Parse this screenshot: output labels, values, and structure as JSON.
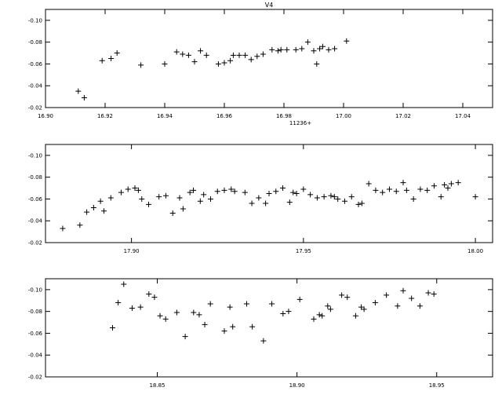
{
  "chart_data": [
    {
      "type": "scatter",
      "title": "V4",
      "xlabel": "11236+",
      "ylabel": "",
      "xlim": [
        16.9,
        17.05
      ],
      "ylim": [
        -0.02,
        -0.11
      ],
      "xticks": [
        "16.90",
        "16.92",
        "16.94",
        "16.96",
        "16.98",
        "17.00",
        "17.02",
        "17.04"
      ],
      "xtick_values": [
        16.9,
        16.92,
        16.94,
        16.96,
        16.98,
        17.0,
        17.02,
        17.04
      ],
      "yticks": [
        "-0.10",
        "-0.08",
        "-0.06",
        "-0.04",
        "-0.02"
      ],
      "ytick_values": [
        -0.1,
        -0.08,
        -0.06,
        -0.04,
        -0.02
      ],
      "marker": "plus",
      "x": [
        16.911,
        16.913,
        16.919,
        16.922,
        16.924,
        16.932,
        16.94,
        16.944,
        16.946,
        16.948,
        16.95,
        16.952,
        16.954,
        16.958,
        16.96,
        16.962,
        16.963,
        16.965,
        16.967,
        16.969,
        16.971,
        16.973,
        16.976,
        16.978,
        16.979,
        16.981,
        16.984,
        16.986,
        16.988,
        16.99,
        16.991,
        16.992,
        16.993,
        16.995,
        16.997,
        17.001
      ],
      "y": [
        -0.035,
        -0.029,
        -0.063,
        -0.065,
        -0.07,
        -0.059,
        -0.06,
        -0.071,
        -0.069,
        -0.068,
        -0.062,
        -0.072,
        -0.068,
        -0.06,
        -0.061,
        -0.063,
        -0.068,
        -0.068,
        -0.068,
        -0.064,
        -0.067,
        -0.069,
        -0.073,
        -0.072,
        -0.073,
        -0.073,
        -0.073,
        -0.074,
        -0.08,
        -0.072,
        -0.06,
        -0.074,
        -0.076,
        -0.073,
        -0.074,
        -0.081
      ]
    },
    {
      "type": "scatter",
      "title": "",
      "xlabel": "",
      "ylabel": "",
      "xlim": [
        17.875,
        18.005
      ],
      "ylim": [
        -0.02,
        -0.11
      ],
      "xticks": [
        "17.90",
        "17.95",
        "18.00"
      ],
      "xtick_values": [
        17.9,
        17.95,
        18.0
      ],
      "yticks": [
        "-0.10",
        "-0.08",
        "-0.06",
        "-0.04",
        "-0.02"
      ],
      "ytick_values": [
        -0.1,
        -0.08,
        -0.06,
        -0.04,
        -0.02
      ],
      "marker": "plus",
      "x": [
        17.88,
        17.885,
        17.887,
        17.889,
        17.891,
        17.892,
        17.894,
        17.897,
        17.899,
        17.901,
        17.902,
        17.903,
        17.905,
        17.908,
        17.91,
        17.912,
        17.914,
        17.915,
        17.917,
        17.918,
        17.92,
        17.921,
        17.923,
        17.925,
        17.927,
        17.929,
        17.93,
        17.933,
        17.935,
        17.937,
        17.939,
        17.94,
        17.942,
        17.944,
        17.946,
        17.947,
        17.948,
        17.95,
        17.952,
        17.954,
        17.956,
        17.958,
        17.959,
        17.96,
        17.962,
        17.964,
        17.966,
        17.967,
        17.969,
        17.971,
        17.973,
        17.975,
        17.977,
        17.979,
        17.98,
        17.982,
        17.984,
        17.986,
        17.988,
        17.99,
        17.991,
        17.992,
        17.993,
        17.995,
        18.0
      ],
      "y": [
        -0.033,
        -0.036,
        -0.048,
        -0.052,
        -0.058,
        -0.049,
        -0.061,
        -0.066,
        -0.069,
        -0.07,
        -0.068,
        -0.06,
        -0.055,
        -0.062,
        -0.063,
        -0.047,
        -0.061,
        -0.051,
        -0.066,
        -0.068,
        -0.058,
        -0.064,
        -0.06,
        -0.067,
        -0.068,
        -0.069,
        -0.067,
        -0.066,
        -0.056,
        -0.061,
        -0.056,
        -0.065,
        -0.067,
        -0.07,
        -0.057,
        -0.066,
        -0.065,
        -0.069,
        -0.064,
        -0.061,
        -0.062,
        -0.063,
        -0.062,
        -0.06,
        -0.058,
        -0.062,
        -0.055,
        -0.056,
        -0.074,
        -0.068,
        -0.066,
        -0.069,
        -0.067,
        -0.075,
        -0.068,
        -0.06,
        -0.069,
        -0.068,
        -0.072,
        -0.062,
        -0.073,
        -0.07,
        -0.074,
        -0.075,
        -0.062
      ]
    },
    {
      "type": "scatter",
      "title": "",
      "xlabel": "",
      "ylabel": "",
      "xlim": [
        18.81,
        18.97
      ],
      "ylim": [
        -0.02,
        -0.11
      ],
      "xticks": [
        "18.85",
        "18.90",
        "18.95"
      ],
      "xtick_values": [
        18.85,
        18.9,
        18.95
      ],
      "yticks": [
        "-0.10",
        "-0.08",
        "-0.06",
        "-0.04",
        "-0.02"
      ],
      "ytick_values": [
        -0.1,
        -0.08,
        -0.06,
        -0.04,
        -0.02
      ],
      "marker": "plus",
      "x": [
        18.834,
        18.836,
        18.838,
        18.841,
        18.844,
        18.847,
        18.849,
        18.851,
        18.853,
        18.857,
        18.86,
        18.863,
        18.865,
        18.867,
        18.869,
        18.874,
        18.876,
        18.877,
        18.882,
        18.884,
        18.888,
        18.891,
        18.895,
        18.897,
        18.901,
        18.906,
        18.908,
        18.909,
        18.911,
        18.912,
        18.916,
        18.918,
        18.921,
        18.923,
        18.924,
        18.928,
        18.932,
        18.936,
        18.938,
        18.941,
        18.944,
        18.947,
        18.949
      ],
      "y": [
        -0.065,
        -0.088,
        -0.105,
        -0.083,
        -0.084,
        -0.096,
        -0.093,
        -0.076,
        -0.073,
        -0.079,
        -0.057,
        -0.079,
        -0.077,
        -0.068,
        -0.087,
        -0.062,
        -0.084,
        -0.066,
        -0.087,
        -0.066,
        -0.053,
        -0.087,
        -0.078,
        -0.08,
        -0.091,
        -0.073,
        -0.077,
        -0.076,
        -0.085,
        -0.082,
        -0.095,
        -0.093,
        -0.076,
        -0.084,
        -0.082,
        -0.088,
        -0.095,
        -0.085,
        -0.099,
        -0.092,
        -0.085,
        -0.097,
        -0.096
      ]
    }
  ]
}
